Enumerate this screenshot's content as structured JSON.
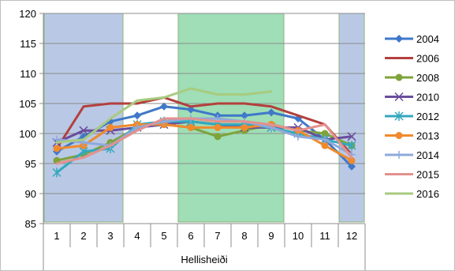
{
  "chart_data": {
    "type": "line",
    "categories": [
      "1",
      "2",
      "3",
      "4",
      "5",
      "6",
      "7",
      "8",
      "9",
      "10",
      "11",
      "12"
    ],
    "xlabel": "Hellisheiði",
    "ylabel": "",
    "ylim": [
      85,
      120
    ],
    "yticks": [
      85,
      90,
      95,
      100,
      105,
      110,
      115,
      120
    ],
    "grid": "horizontal",
    "legend_position": "right",
    "bands": [
      {
        "from": "1",
        "to": "3",
        "color": "#b9c9e5"
      },
      {
        "from": "6",
        "to": "9",
        "color": "#9fdeb6"
      },
      {
        "from": "12",
        "to": "12",
        "color": "#b9c9e5"
      }
    ],
    "series": [
      {
        "name": "2004",
        "color": "#3f78c8",
        "marker": "diamond",
        "values": [
          97.0,
          99.5,
          102.0,
          103.0,
          104.5,
          104.0,
          103.0,
          103.0,
          103.5,
          102.5,
          99.0,
          94.5
        ]
      },
      {
        "name": "2006",
        "color": "#b3403e",
        "marker": "none",
        "values": [
          97.5,
          104.5,
          105.0,
          105.0,
          106.0,
          104.5,
          105.0,
          105.0,
          104.5,
          103.0,
          101.5,
          96.5
        ]
      },
      {
        "name": "2008",
        "color": "#7ea33a",
        "marker": "circle",
        "values": [
          95.5,
          96.5,
          98.5,
          101.0,
          101.5,
          101.0,
          99.5,
          100.5,
          101.5,
          100.5,
          100.0,
          98.0
        ]
      },
      {
        "name": "2010",
        "color": "#6a4c9c",
        "marker": "x",
        "values": [
          98.5,
          100.5,
          100.5,
          101.0,
          101.5,
          102.0,
          101.5,
          101.0,
          101.0,
          101.0,
          99.0,
          99.5
        ]
      },
      {
        "name": "2012",
        "color": "#33a8be",
        "marker": "asterisk",
        "values": [
          93.5,
          97.0,
          97.5,
          101.5,
          102.0,
          102.0,
          101.5,
          101.5,
          101.0,
          100.0,
          99.0,
          98.0
        ]
      },
      {
        "name": "2013",
        "color": "#f08a2c",
        "marker": "circle",
        "values": [
          97.5,
          98.0,
          101.0,
          101.5,
          101.5,
          101.0,
          101.0,
          101.0,
          101.5,
          100.5,
          98.0,
          95.5
        ]
      },
      {
        "name": "2014",
        "color": "#8fa9db",
        "marker": "plus",
        "values": [
          99.0,
          98.5,
          98.0,
          101.0,
          102.0,
          102.5,
          102.5,
          102.0,
          101.0,
          99.5,
          99.0,
          96.5
        ]
      },
      {
        "name": "2015",
        "color": "#e3928e",
        "marker": "none",
        "values": [
          95.0,
          96.0,
          98.0,
          100.5,
          102.5,
          102.5,
          102.0,
          102.0,
          101.5,
          100.5,
          101.5,
          96.0
        ]
      },
      {
        "name": "2016",
        "color": "#a8cb7f",
        "marker": "none",
        "values": [
          98.5,
          99.0,
          102.5,
          105.5,
          106.0,
          107.5,
          106.5,
          106.5,
          107.0,
          null,
          null,
          null
        ]
      }
    ]
  }
}
